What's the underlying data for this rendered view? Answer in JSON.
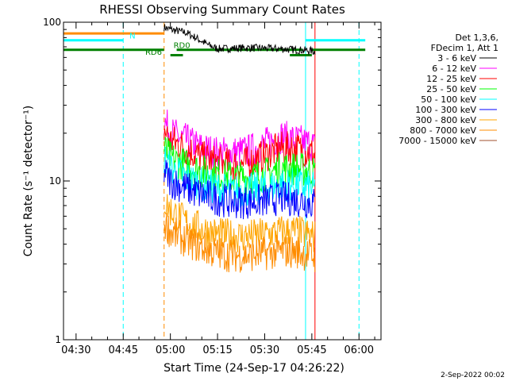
{
  "chart_data": {
    "type": "line",
    "title": "RHESSI Observing Summary Count Rates",
    "xlabel": "Start Time (24-Sep-17 04:26:22)",
    "ylabel": "Count Rate (s⁻¹ detector⁻¹)",
    "yscale": "log",
    "ylim": [
      1,
      100
    ],
    "xlim": [
      "04:26",
      "06:07"
    ],
    "x_ticks": [
      "04:30",
      "04:45",
      "05:00",
      "05:15",
      "05:30",
      "05:45",
      "06:00"
    ],
    "y_ticks": [
      "1",
      "10",
      "100"
    ],
    "grid": false,
    "legend_position": "right",
    "legend_header": [
      "Det 1,3,6,",
      "FDecim 1, Att 1"
    ],
    "series": [
      {
        "name": "3 - 6 keV",
        "color": "#000000",
        "x": [
          "04:58",
          "05:00",
          "05:05",
          "05:08",
          "05:12",
          "05:15",
          "05:25",
          "05:35",
          "05:45",
          "05:46"
        ],
        "values": [
          93,
          90,
          86,
          80,
          72,
          68,
          69,
          68,
          66,
          65
        ]
      },
      {
        "name": "6 - 12 keV",
        "color": "#ff00ff",
        "x": [
          "04:58",
          "05:00",
          "05:05",
          "05:10",
          "05:15",
          "05:20",
          "05:25",
          "05:30",
          "05:35",
          "05:40",
          "05:45",
          "05:46"
        ],
        "values": [
          24,
          20,
          18,
          16,
          15,
          15,
          15.5,
          17,
          19,
          18,
          17,
          16
        ]
      },
      {
        "name": "12 - 25 keV",
        "color": "#ff0000",
        "x": [
          "04:58",
          "05:00",
          "05:05",
          "05:10",
          "05:15",
          "05:20",
          "05:25",
          "05:30",
          "05:35",
          "05:40",
          "05:45",
          "05:46"
        ],
        "values": [
          21,
          18,
          16,
          14,
          13,
          12.5,
          13,
          14.5,
          16,
          16,
          15,
          14.5
        ]
      },
      {
        "name": "25 - 50 keV",
        "color": "#00ff00",
        "x": [
          "04:58",
          "05:00",
          "05:05",
          "05:10",
          "05:15",
          "05:20",
          "05:25",
          "05:30",
          "05:35",
          "05:40",
          "05:45",
          "05:46"
        ],
        "values": [
          16,
          14,
          12.5,
          11.5,
          11,
          10.5,
          10.5,
          11,
          12,
          12,
          11.5,
          11
        ]
      },
      {
        "name": "50 - 100 keV",
        "color": "#00ffff",
        "x": [
          "04:58",
          "05:00",
          "05:05",
          "05:10",
          "05:15",
          "05:20",
          "05:25",
          "05:30",
          "05:35",
          "05:40",
          "05:45",
          "05:46"
        ],
        "values": [
          14,
          12,
          10.5,
          9.5,
          9,
          8.5,
          8.8,
          9,
          9.5,
          9.5,
          9,
          8.8
        ]
      },
      {
        "name": "100 - 300 keV",
        "color": "#0000ff",
        "x": [
          "04:58",
          "05:00",
          "05:05",
          "05:10",
          "05:15",
          "05:20",
          "05:25",
          "05:30",
          "05:35",
          "05:40",
          "05:45",
          "05:46"
        ],
        "values": [
          11.5,
          10,
          9,
          8.2,
          7.7,
          7.4,
          7.4,
          7.5,
          7.8,
          7.6,
          7.3,
          7.1
        ]
      },
      {
        "name": "300 - 800 keV",
        "color": "#ffa500",
        "x": [
          "04:58",
          "05:00",
          "05:05",
          "05:10",
          "05:15",
          "05:20",
          "05:25",
          "05:30",
          "05:35",
          "05:40",
          "05:45",
          "05:46"
        ],
        "values": [
          7.5,
          6.5,
          5.5,
          5,
          4.6,
          4.5,
          4.5,
          4.6,
          4.8,
          4.8,
          4.5,
          4.4
        ]
      },
      {
        "name": "800 - 7000 keV",
        "color": "#ff8c00",
        "x": [
          "04:58",
          "05:00",
          "05:05",
          "05:10",
          "05:15",
          "05:20",
          "05:25",
          "05:30",
          "05:35",
          "05:40",
          "05:45",
          "05:46"
        ],
        "values": [
          5.5,
          4.8,
          4.2,
          3.8,
          3.5,
          3.4,
          3.4,
          3.5,
          3.6,
          3.6,
          3.4,
          3.3
        ]
      },
      {
        "name": "7000 - 15000 keV",
        "color": "#a0522d",
        "x": [],
        "values": []
      }
    ],
    "annotations": [
      {
        "text": "N",
        "color": "#00ffff"
      },
      {
        "text": "RD0",
        "color": "#008000"
      },
      {
        "text": "RD6",
        "color": "#008000"
      }
    ],
    "vertical_lines": [
      {
        "time": "04:26",
        "color": "#00ffff",
        "style": "solid"
      },
      {
        "time": "04:45",
        "color": "#00ffff",
        "style": "dashed"
      },
      {
        "time": "04:58",
        "color": "#ff8c00",
        "style": "dashed"
      },
      {
        "time": "05:43",
        "color": "#00ffff",
        "style": "solid"
      },
      {
        "time": "05:46",
        "color": "#ff0000",
        "style": "solid"
      },
      {
        "time": "06:00",
        "color": "#00ffff",
        "style": "dashed"
      }
    ],
    "status_bars": [
      {
        "color": "#ff8c00",
        "start": "04:26",
        "end": "04:58",
        "level": 85
      },
      {
        "color": "#00ffff",
        "start": "04:26",
        "end": "04:45",
        "level": 77
      },
      {
        "color": "#00ffff",
        "start": "05:43",
        "end": "06:02",
        "level": 77
      },
      {
        "color": "#008000",
        "start": "04:26",
        "end": "04:58",
        "level": 67
      },
      {
        "color": "#008000",
        "start": "05:02",
        "end": "05:42",
        "level": 67
      },
      {
        "color": "#008000",
        "start": "05:45",
        "end": "06:02",
        "level": 67
      },
      {
        "color": "#008000",
        "start": "05:00",
        "end": "05:04",
        "level": 62
      },
      {
        "color": "#008000",
        "start": "05:38",
        "end": "05:45",
        "level": 62
      }
    ]
  },
  "footer_date": "2-Sep-2022 00:02"
}
